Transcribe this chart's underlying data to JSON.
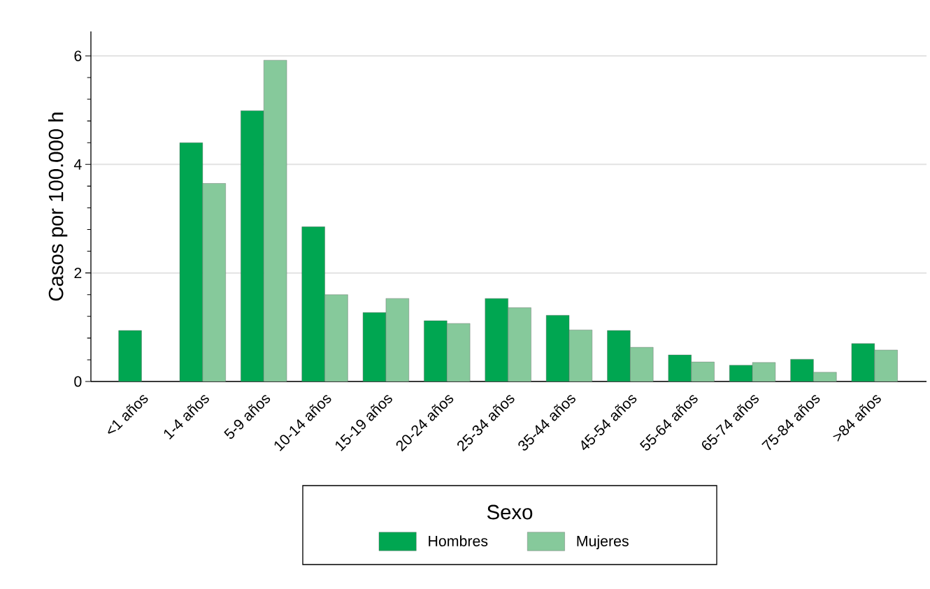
{
  "chart_data": {
    "type": "bar",
    "ylabel": "Casos por 100.000 h",
    "legend_title": "Sexo",
    "legend": "bottom",
    "grid": "y",
    "categories": [
      "<1 años",
      "1-4 años",
      "5-9 años",
      "10-14 años",
      "15-19 años",
      "20-24 años",
      "25-34 años",
      "35-44 años",
      "45-54 años",
      "55-64 años",
      "65-74 años",
      "75-84 años",
      ">84 años"
    ],
    "series": [
      {
        "name": "Hombres",
        "color": "#00a651",
        "values": [
          0.94,
          4.4,
          4.99,
          2.85,
          1.27,
          1.12,
          1.53,
          1.22,
          0.94,
          0.49,
          0.3,
          0.41,
          0.7
        ]
      },
      {
        "name": "Mujeres",
        "color": "#86c99b",
        "values": [
          null,
          3.65,
          5.92,
          1.6,
          1.53,
          1.07,
          1.36,
          0.95,
          0.63,
          0.36,
          0.35,
          0.17,
          0.58
        ]
      }
    ],
    "ylim": [
      0,
      6.45
    ],
    "yticks": [
      0,
      2,
      4,
      6
    ]
  }
}
